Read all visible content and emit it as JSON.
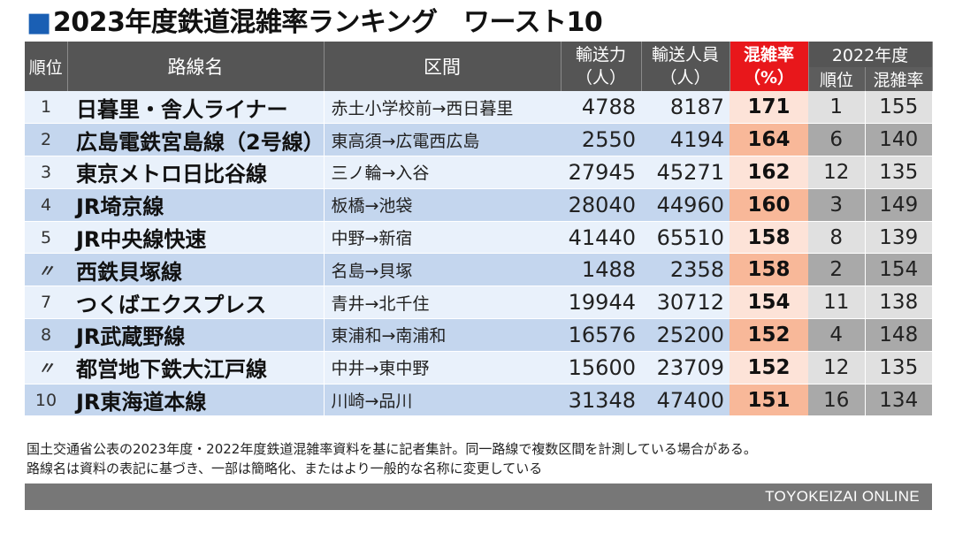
{
  "title_mark": "■",
  "title": "2023年度鉄道混雑率ランキング　ワースト10",
  "headers": {
    "rank": "順位",
    "line": "路線名",
    "section": "区間",
    "capacity_1": "輸送力",
    "capacity_2": "（人）",
    "passengers_1": "輸送人員",
    "passengers_2": "（人）",
    "congestion_1": "混雑率",
    "congestion_2": "（%）",
    "prev_year": "2022年度",
    "prev_rank": "順位",
    "prev_congestion": "混雑率"
  },
  "rows": [
    {
      "rank": "1",
      "line": "日暮里・舎人ライナー",
      "section": "赤土小学校前→西日暮里",
      "capacity": "4788",
      "passengers": "8187",
      "congestion": "171",
      "prev_rank": "1",
      "prev_congestion": "155"
    },
    {
      "rank": "2",
      "line": "広島電鉄宮島線（2号線）",
      "section": "東高須→広電西広島",
      "capacity": "2550",
      "passengers": "4194",
      "congestion": "164",
      "prev_rank": "6",
      "prev_congestion": "140"
    },
    {
      "rank": "3",
      "line": "東京メトロ日比谷線",
      "section": "三ノ輪→入谷",
      "capacity": "27945",
      "passengers": "45271",
      "congestion": "162",
      "prev_rank": "12",
      "prev_congestion": "135"
    },
    {
      "rank": "4",
      "line": "JR埼京線",
      "section": "板橋→池袋",
      "capacity": "28040",
      "passengers": "44960",
      "congestion": "160",
      "prev_rank": "3",
      "prev_congestion": "149"
    },
    {
      "rank": "5",
      "line": "JR中央線快速",
      "section": "中野→新宿",
      "capacity": "41440",
      "passengers": "65510",
      "congestion": "158",
      "prev_rank": "8",
      "prev_congestion": "139"
    },
    {
      "rank": "〃",
      "line": "西鉄貝塚線",
      "section": "名島→貝塚",
      "capacity": "1488",
      "passengers": "2358",
      "congestion": "158",
      "prev_rank": "2",
      "prev_congestion": "154"
    },
    {
      "rank": "7",
      "line": "つくばエクスプレス",
      "section": "青井→北千住",
      "capacity": "19944",
      "passengers": "30712",
      "congestion": "154",
      "prev_rank": "11",
      "prev_congestion": "138"
    },
    {
      "rank": "8",
      "line": "JR武蔵野線",
      "section": "東浦和→南浦和",
      "capacity": "16576",
      "passengers": "25200",
      "congestion": "152",
      "prev_rank": "4",
      "prev_congestion": "148"
    },
    {
      "rank": "〃",
      "line": "都営地下鉄大江戸線",
      "section": "中井→東中野",
      "capacity": "15600",
      "passengers": "23709",
      "congestion": "152",
      "prev_rank": "12",
      "prev_congestion": "135"
    },
    {
      "rank": "10",
      "line": "JR東海道本線",
      "section": "川崎→品川",
      "capacity": "31348",
      "passengers": "47400",
      "congestion": "151",
      "prev_rank": "16",
      "prev_congestion": "134"
    }
  ],
  "note_line1": "国土交通省公表の2023年度・2022年度鉄道混雑率資料を基に記者集計。同一路線で複数区間を計測している場合がある。",
  "note_line2": "路線名は資料の表記に基づき、一部は簡略化、またはより一般的な名称に変更している",
  "footer": "TOYOKEIZAI ONLINE"
}
